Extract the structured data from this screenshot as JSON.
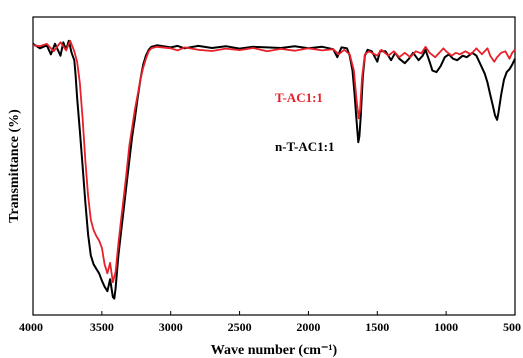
{
  "chart_data": {
    "type": "line",
    "title": "",
    "xlabel": "Wave number (cm⁻¹)",
    "ylabel": "Transmittance (%)",
    "xlim": [
      4000,
      500
    ],
    "ylim": [
      0,
      100
    ],
    "x_reversed": true,
    "y_ticks_shown": false,
    "xticks": [
      4000,
      3500,
      3000,
      2500,
      2000,
      1500,
      1000,
      500
    ],
    "xtick_labels": [
      "4000",
      "3500",
      "3000",
      "2500",
      "2000",
      "1500",
      "1000",
      "500"
    ],
    "grid": false,
    "legend_placement": "inline labels",
    "series": [
      {
        "name": "T-AC1:1",
        "color": "#e8202a",
        "points": [
          [
            4000,
            90.5
          ],
          [
            3950,
            90.2
          ],
          [
            3900,
            91.0
          ],
          [
            3850,
            88.5
          ],
          [
            3800,
            91.5
          ],
          [
            3760,
            88.8
          ],
          [
            3730,
            92.0
          ],
          [
            3700,
            88.5
          ],
          [
            3680,
            85.0
          ],
          [
            3660,
            78.0
          ],
          [
            3640,
            66.0
          ],
          [
            3620,
            52.0
          ],
          [
            3600,
            40.0
          ],
          [
            3580,
            32.0
          ],
          [
            3560,
            28.5
          ],
          [
            3540,
            26.5
          ],
          [
            3520,
            25.0
          ],
          [
            3500,
            22.5
          ],
          [
            3480,
            17.0
          ],
          [
            3460,
            14.0
          ],
          [
            3440,
            17.5
          ],
          [
            3420,
            11.0
          ],
          [
            3400,
            14.5
          ],
          [
            3380,
            24.0
          ],
          [
            3360,
            32.0
          ],
          [
            3340,
            40.0
          ],
          [
            3320,
            48.0
          ],
          [
            3300,
            57.0
          ],
          [
            3280,
            63.0
          ],
          [
            3260,
            69.0
          ],
          [
            3240,
            74.0
          ],
          [
            3220,
            79.0
          ],
          [
            3200,
            83.0
          ],
          [
            3180,
            86.0
          ],
          [
            3160,
            88.5
          ],
          [
            3140,
            89.5
          ],
          [
            3100,
            90.0
          ],
          [
            3000,
            89.5
          ],
          [
            2950,
            88.8
          ],
          [
            2900,
            89.8
          ],
          [
            2800,
            89.0
          ],
          [
            2700,
            88.6
          ],
          [
            2600,
            89.4
          ],
          [
            2500,
            88.9
          ],
          [
            2400,
            89.6
          ],
          [
            2300,
            88.5
          ],
          [
            2200,
            89.3
          ],
          [
            2100,
            88.7
          ],
          [
            2000,
            89.5
          ],
          [
            1900,
            88.8
          ],
          [
            1820,
            89.2
          ],
          [
            1780,
            87.5
          ],
          [
            1740,
            89.0
          ],
          [
            1700,
            87.5
          ],
          [
            1670,
            82.0
          ],
          [
            1650,
            72.0
          ],
          [
            1635,
            66.0
          ],
          [
            1625,
            69.0
          ],
          [
            1610,
            80.0
          ],
          [
            1590,
            87.5
          ],
          [
            1560,
            88.5
          ],
          [
            1500,
            87.0
          ],
          [
            1470,
            89.0
          ],
          [
            1420,
            87.0
          ],
          [
            1380,
            88.5
          ],
          [
            1340,
            86.5
          ],
          [
            1300,
            88.0
          ],
          [
            1260,
            86.5
          ],
          [
            1220,
            88.5
          ],
          [
            1180,
            87.8
          ],
          [
            1150,
            90.0
          ],
          [
            1120,
            88.0
          ],
          [
            1080,
            86.5
          ],
          [
            1050,
            88.0
          ],
          [
            1020,
            89.5
          ],
          [
            1000,
            88.5
          ],
          [
            960,
            87.0
          ],
          [
            930,
            88.0
          ],
          [
            900,
            87.5
          ],
          [
            860,
            88.5
          ],
          [
            820,
            87.5
          ],
          [
            780,
            89.5
          ],
          [
            740,
            87.5
          ],
          [
            700,
            89.5
          ],
          [
            680,
            87.0
          ],
          [
            650,
            85.0
          ],
          [
            630,
            86.5
          ],
          [
            600,
            88.0
          ],
          [
            570,
            88.5
          ],
          [
            540,
            86.0
          ],
          [
            520,
            88.0
          ],
          [
            500,
            89.0
          ]
        ]
      },
      {
        "name": "n-T-AC1:1",
        "color": "#000000",
        "points": [
          [
            4000,
            91.0
          ],
          [
            3950,
            89.5
          ],
          [
            3900,
            90.5
          ],
          [
            3870,
            87.5
          ],
          [
            3840,
            91.0
          ],
          [
            3800,
            87.0
          ],
          [
            3780,
            91.5
          ],
          [
            3760,
            89.0
          ],
          [
            3740,
            92.0
          ],
          [
            3720,
            88.0
          ],
          [
            3700,
            85.5
          ],
          [
            3690,
            80.0
          ],
          [
            3680,
            73.0
          ],
          [
            3660,
            62.0
          ],
          [
            3640,
            50.0
          ],
          [
            3620,
            38.0
          ],
          [
            3600,
            27.0
          ],
          [
            3580,
            20.0
          ],
          [
            3560,
            17.0
          ],
          [
            3540,
            15.5
          ],
          [
            3520,
            14.0
          ],
          [
            3500,
            11.5
          ],
          [
            3480,
            9.5
          ],
          [
            3460,
            8.0
          ],
          [
            3440,
            12.0
          ],
          [
            3420,
            6.0
          ],
          [
            3410,
            5.5
          ],
          [
            3400,
            9.0
          ],
          [
            3380,
            20.0
          ],
          [
            3360,
            28.0
          ],
          [
            3340,
            36.0
          ],
          [
            3320,
            44.0
          ],
          [
            3300,
            52.0
          ],
          [
            3280,
            60.0
          ],
          [
            3260,
            66.0
          ],
          [
            3240,
            73.0
          ],
          [
            3220,
            79.0
          ],
          [
            3200,
            84.0
          ],
          [
            3180,
            87.0
          ],
          [
            3160,
            89.0
          ],
          [
            3140,
            90.0
          ],
          [
            3100,
            90.5
          ],
          [
            3000,
            89.8
          ],
          [
            2950,
            90.3
          ],
          [
            2900,
            89.5
          ],
          [
            2800,
            90.3
          ],
          [
            2700,
            89.6
          ],
          [
            2600,
            90.2
          ],
          [
            2500,
            89.4
          ],
          [
            2400,
            90.0
          ],
          [
            2300,
            89.8
          ],
          [
            2200,
            89.6
          ],
          [
            2100,
            90.2
          ],
          [
            2000,
            89.5
          ],
          [
            1900,
            90.0
          ],
          [
            1820,
            89.2
          ],
          [
            1790,
            86.5
          ],
          [
            1760,
            89.8
          ],
          [
            1720,
            89.5
          ],
          [
            1700,
            87.0
          ],
          [
            1680,
            82.0
          ],
          [
            1665,
            74.0
          ],
          [
            1650,
            65.0
          ],
          [
            1638,
            58.0
          ],
          [
            1630,
            60.0
          ],
          [
            1620,
            67.0
          ],
          [
            1605,
            80.0
          ],
          [
            1590,
            87.0
          ],
          [
            1570,
            89.0
          ],
          [
            1540,
            88.5
          ],
          [
            1500,
            85.0
          ],
          [
            1480,
            88.5
          ],
          [
            1440,
            88.5
          ],
          [
            1400,
            85.5
          ],
          [
            1370,
            88.0
          ],
          [
            1340,
            86.0
          ],
          [
            1300,
            84.5
          ],
          [
            1270,
            86.0
          ],
          [
            1240,
            88.0
          ],
          [
            1200,
            85.5
          ],
          [
            1170,
            87.0
          ],
          [
            1150,
            89.0
          ],
          [
            1120,
            85.0
          ],
          [
            1100,
            82.0
          ],
          [
            1070,
            81.5
          ],
          [
            1040,
            83.5
          ],
          [
            1010,
            86.5
          ],
          [
            980,
            87.5
          ],
          [
            950,
            86.0
          ],
          [
            920,
            85.5
          ],
          [
            880,
            87.0
          ],
          [
            850,
            86.5
          ],
          [
            810,
            88.0
          ],
          [
            780,
            87.0
          ],
          [
            750,
            84.0
          ],
          [
            720,
            81.0
          ],
          [
            700,
            78.0
          ],
          [
            680,
            74.0
          ],
          [
            660,
            70.0
          ],
          [
            645,
            67.0
          ],
          [
            630,
            65.5
          ],
          [
            620,
            68.0
          ],
          [
            600,
            74.0
          ],
          [
            580,
            79.0
          ],
          [
            560,
            81.5
          ],
          [
            540,
            82.5
          ],
          [
            520,
            84.0
          ],
          [
            500,
            86.0
          ]
        ]
      }
    ]
  }
}
